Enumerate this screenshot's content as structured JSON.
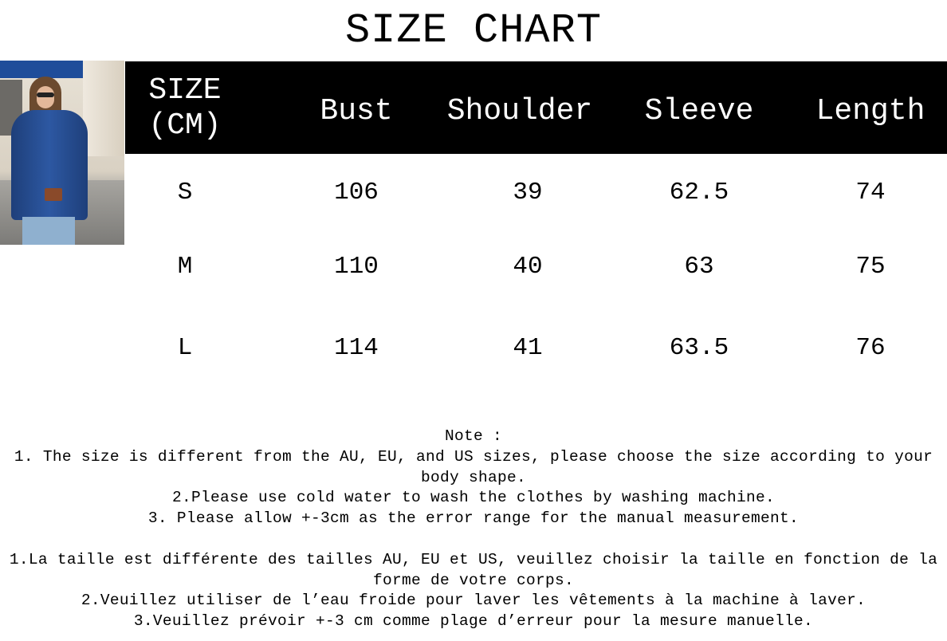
{
  "title": "SIZE CHART",
  "table": {
    "headers": [
      "SIZE\n(CM)",
      "Bust",
      "Shoulder",
      "Sleeve",
      "Length"
    ],
    "header_size_line1": "SIZE",
    "header_size_line2": "(CM)",
    "rows": [
      [
        "S",
        "106",
        "39",
        "62.5",
        "74"
      ],
      [
        "M",
        "110",
        "40",
        "63",
        "75"
      ],
      [
        "L",
        "114",
        "41",
        "63.5",
        "76"
      ]
    ]
  },
  "notes": {
    "heading": "Note :",
    "english": [
      "1. The size is different from the AU, EU, and US sizes, please choose the size according to your body shape.",
      "2.Please use cold water to wash the clothes by washing machine.",
      "3. Please allow +-3cm as the error range for the manual measurement."
    ],
    "french": [
      "1.La taille est différente des tailles AU, EU et US, veuillez choisir la taille en fonction de la forme de votre corps.",
      "2.Veuillez utiliser de l’eau froide pour laver les vêtements à la machine à laver.",
      "3.Veuillez prévoir +-3 cm comme plage d’erreur pour la mesure manuelle."
    ]
  },
  "colors": {
    "header_bg": "#000000",
    "header_text": "#ffffff",
    "shirt": "#2d58a2"
  }
}
